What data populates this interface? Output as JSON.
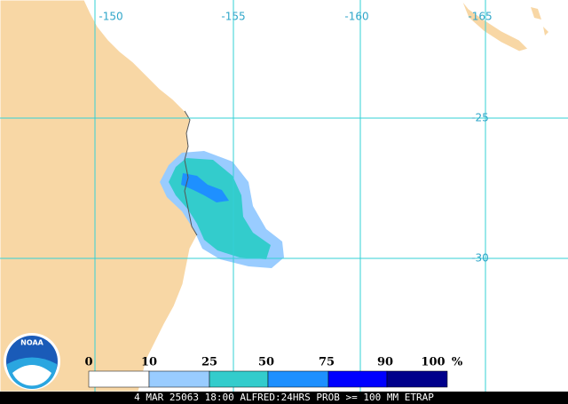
{
  "map": {
    "lon_labels": [
      -150,
      -155,
      -160,
      -165
    ],
    "lat_labels": [
      -25,
      -30
    ]
  },
  "legend": {
    "labels": [
      0,
      10,
      25,
      50,
      75,
      90,
      100
    ],
    "unit": "%",
    "colors": [
      "#ffffff",
      "#99ccff",
      "#33cccc",
      "#1e90ff",
      "#0000ff",
      "#00008b"
    ]
  },
  "logo": "NOAA",
  "caption": "4 MAR 25063 18:00 ALFRED:24HRS PROB >= 100 MM ETRAP"
}
